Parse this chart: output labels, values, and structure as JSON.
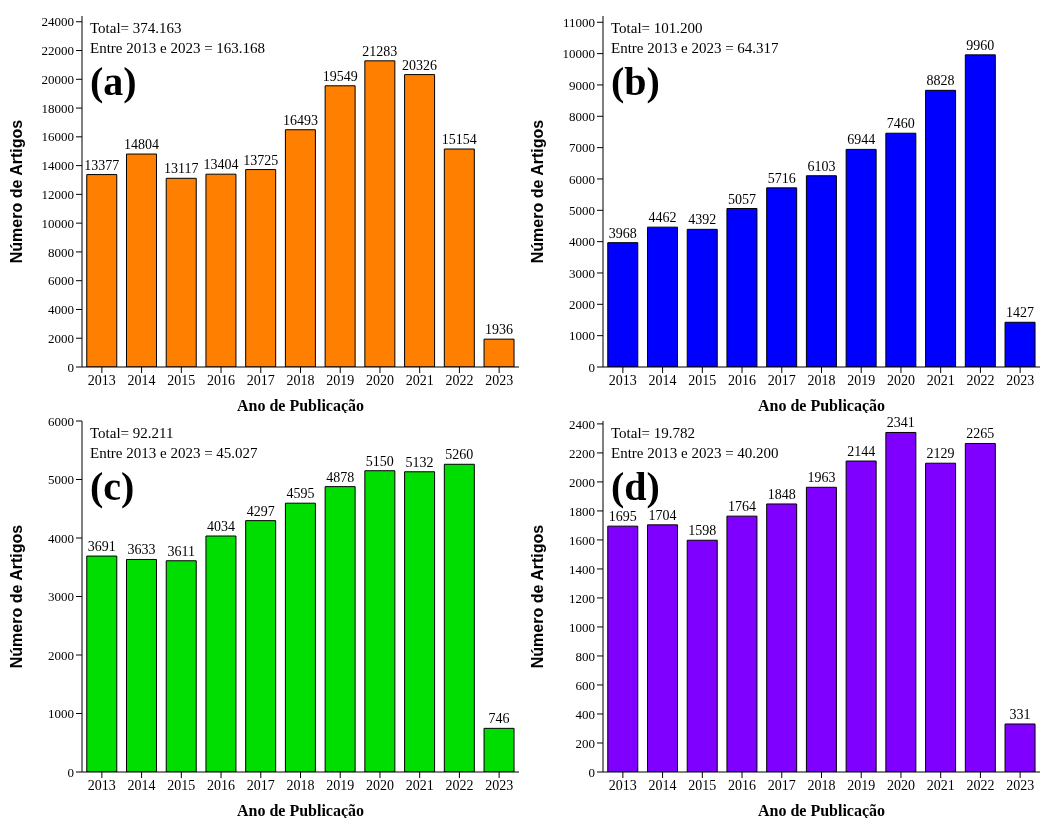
{
  "chart_data": [
    {
      "type": "bar",
      "xlabel": "Ano de Publicação",
      "ylabel": "Número de Artigos",
      "categories": [
        "2013",
        "2014",
        "2015",
        "2016",
        "2017",
        "2018",
        "2019",
        "2020",
        "2021",
        "2022",
        "2023"
      ],
      "values": [
        13377,
        14804,
        13117,
        13404,
        13725,
        16493,
        19549,
        21283,
        20326,
        15154,
        1936
      ],
      "color": "#ff7f00",
      "ylim": [
        0,
        24400
      ],
      "yticks": [
        0,
        2000,
        4000,
        6000,
        8000,
        10000,
        12000,
        14000,
        16000,
        18000,
        20000,
        22000,
        24000
      ],
      "data_labels": true,
      "grid": false,
      "legend": false,
      "annotations": [
        "Total= 374.163",
        "Entre 2013 e 2023 = 163.168",
        "(a)"
      ]
    },
    {
      "type": "bar",
      "xlabel": "Ano de Publicação",
      "ylabel": "Número de Artigos",
      "categories": [
        "2013",
        "2014",
        "2015",
        "2016",
        "2017",
        "2018",
        "2019",
        "2020",
        "2021",
        "2022",
        "2023"
      ],
      "values": [
        3968,
        4462,
        4392,
        5057,
        5716,
        6103,
        6944,
        7460,
        8828,
        9960,
        1427
      ],
      "color": "#0000ff",
      "ylim": [
        0,
        11200
      ],
      "yticks": [
        0,
        1000,
        2000,
        3000,
        4000,
        5000,
        6000,
        7000,
        8000,
        9000,
        10000,
        11000
      ],
      "data_labels": true,
      "grid": false,
      "legend": false,
      "annotations": [
        "Total= 101.200",
        "Entre 2013 e 2023 = 64.317",
        "(b)"
      ]
    },
    {
      "type": "bar",
      "xlabel": "Ano de Publicação",
      "ylabel": "Número de Artigos",
      "categories": [
        "2013",
        "2014",
        "2015",
        "2016",
        "2017",
        "2018",
        "2019",
        "2020",
        "2021",
        "2022",
        "2023"
      ],
      "values": [
        3691,
        3633,
        3611,
        4034,
        4297,
        4595,
        4878,
        5150,
        5132,
        5260,
        746
      ],
      "color": "#00dd00",
      "ylim": [
        0,
        6000
      ],
      "yticks": [
        0,
        1000,
        2000,
        3000,
        4000,
        5000,
        6000
      ],
      "data_labels": true,
      "grid": false,
      "legend": false,
      "annotations": [
        "Total= 92.211",
        "Entre 2013 e 2023 = 45.027",
        "(c)"
      ]
    },
    {
      "type": "bar",
      "xlabel": "Ano de Publicação",
      "ylabel": "Número de Artigos",
      "categories": [
        "2013",
        "2014",
        "2015",
        "2016",
        "2017",
        "2018",
        "2019",
        "2020",
        "2021",
        "2022",
        "2023"
      ],
      "values": [
        1695,
        1704,
        1598,
        1764,
        1848,
        1963,
        2144,
        2341,
        2129,
        2265,
        331
      ],
      "color": "#8000ff",
      "ylim": [
        0,
        2420
      ],
      "yticks": [
        0,
        200,
        400,
        600,
        800,
        1000,
        1200,
        1400,
        1600,
        1800,
        2000,
        2200,
        2400
      ],
      "data_labels": true,
      "grid": false,
      "legend": false,
      "annotations": [
        "Total= 19.782",
        "Entre 2013 e 2023 = 40.200",
        "(d)"
      ]
    }
  ]
}
